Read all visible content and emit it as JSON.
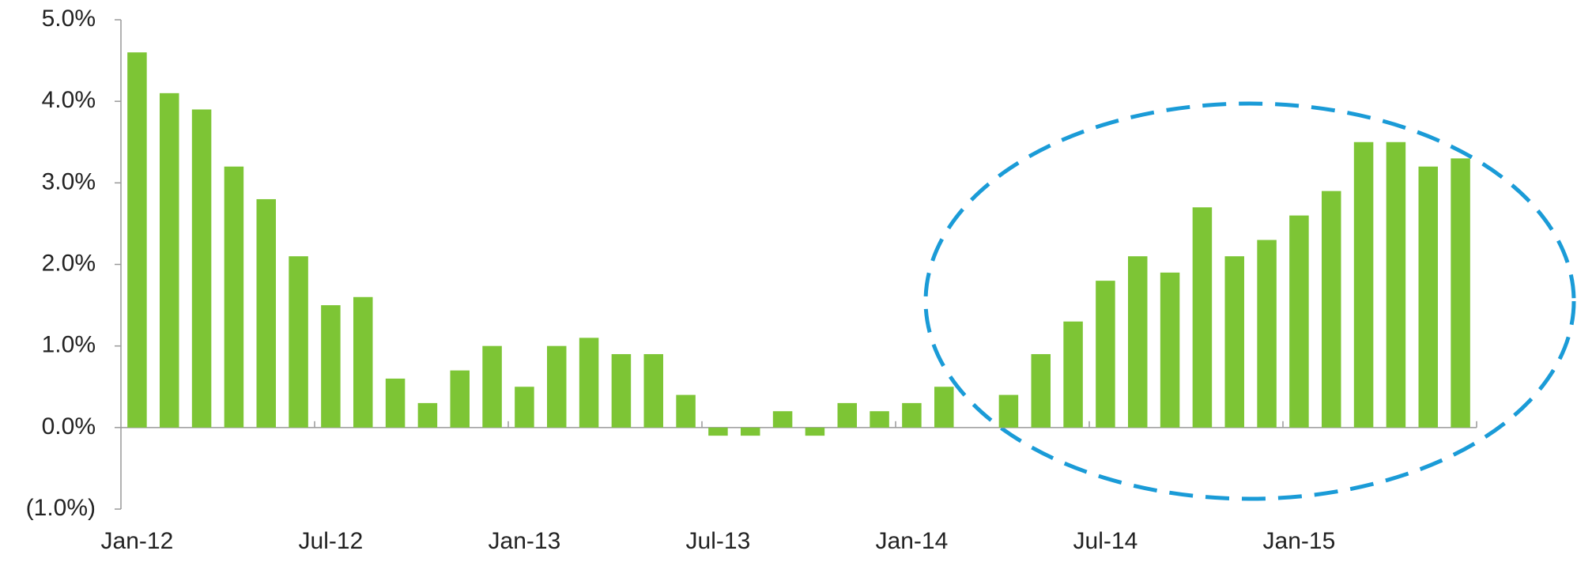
{
  "chart_data": {
    "type": "bar",
    "categories": [
      "Jan-12",
      null,
      null,
      null,
      null,
      null,
      "Jul-12",
      null,
      null,
      null,
      null,
      null,
      "Jan-13",
      null,
      null,
      null,
      null,
      null,
      "Jul-13",
      null,
      null,
      null,
      null,
      null,
      "Jan-14",
      null,
      null,
      null,
      null,
      null,
      "Jul-14",
      null,
      null,
      null,
      null,
      null,
      "Jan-15",
      null,
      null,
      null,
      null,
      null
    ],
    "values": [
      4.6,
      4.1,
      3.9,
      3.2,
      2.8,
      2.1,
      1.5,
      1.6,
      0.6,
      0.3,
      0.7,
      1.0,
      0.5,
      1.0,
      1.1,
      0.9,
      0.9,
      0.4,
      -0.1,
      -0.1,
      0.2,
      -0.1,
      0.3,
      0.2,
      0.3,
      0.5,
      0.0,
      0.4,
      0.9,
      1.3,
      1.8,
      2.1,
      1.9,
      2.7,
      2.1,
      2.3,
      2.6,
      2.9,
      3.5,
      3.5,
      3.2,
      3.3
    ],
    "color": "#7dc535",
    "ylim": [
      -1,
      5
    ],
    "yticks": [
      {
        "value": -1,
        "label": "(1.0%)"
      },
      {
        "value": 0,
        "label": "0.0%"
      },
      {
        "value": 1,
        "label": "1.0%"
      },
      {
        "value": 2,
        "label": "2.0%"
      },
      {
        "value": 3,
        "label": "3.0%"
      },
      {
        "value": 4,
        "label": "4.0%"
      },
      {
        "value": 5,
        "label": "5.0%"
      }
    ],
    "grid": false
  }
}
